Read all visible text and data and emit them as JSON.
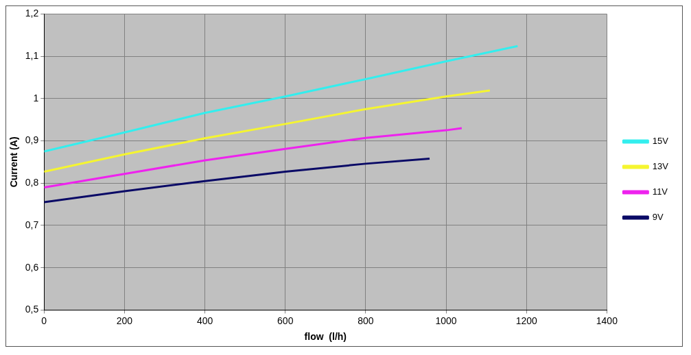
{
  "chart_data": {
    "type": "line",
    "xlabel": "flow  (l/h)",
    "ylabel": "Current (A)",
    "xlim": [
      0,
      1400
    ],
    "xticks": [
      0,
      200,
      400,
      600,
      800,
      1000,
      1200,
      1400
    ],
    "ylim": [
      0.5,
      1.2
    ],
    "yticks": [
      {
        "value": 0.5,
        "label": "0,5"
      },
      {
        "value": 0.6,
        "label": "0,6"
      },
      {
        "value": 0.7,
        "label": "0,7"
      },
      {
        "value": 0.8,
        "label": "0,8"
      },
      {
        "value": 0.9,
        "label": "0,9"
      },
      {
        "value": 1,
        "label": "1"
      },
      {
        "value": 1.1,
        "label": "1,1"
      },
      {
        "value": 1.2,
        "label": "1,2"
      }
    ],
    "grid": true,
    "legend": "right",
    "marker": "none",
    "line_style": "solid",
    "series": [
      {
        "name": "15V",
        "color": "#33eeee",
        "x": [
          0,
          200,
          400,
          600,
          800,
          1000,
          1178
        ],
        "values": [
          0.875,
          0.92,
          0.966,
          1.005,
          1.046,
          1.088,
          1.124
        ]
      },
      {
        "name": "13V",
        "color": "#f5f530",
        "x": [
          0,
          200,
          400,
          600,
          800,
          1000,
          1109
        ],
        "values": [
          0.827,
          0.868,
          0.906,
          0.94,
          0.975,
          1.005,
          1.019
        ]
      },
      {
        "name": "11V",
        "color": "#ee22ee",
        "x": [
          0,
          200,
          400,
          600,
          800,
          1000,
          1039
        ],
        "values": [
          0.79,
          0.822,
          0.854,
          0.881,
          0.907,
          0.925,
          0.93
        ]
      },
      {
        "name": "9V",
        "color": "#0a0a66",
        "x": [
          0,
          200,
          400,
          600,
          800,
          959
        ],
        "values": [
          0.755,
          0.781,
          0.805,
          0.827,
          0.846,
          0.858
        ]
      }
    ]
  }
}
